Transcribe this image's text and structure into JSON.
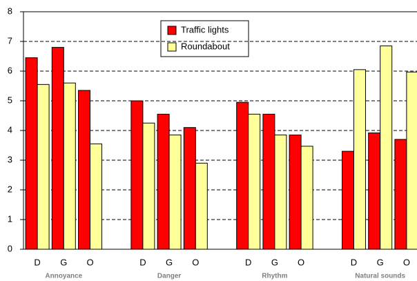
{
  "chart_data": {
    "type": "bar",
    "categories": [
      "D",
      "G",
      "O",
      "D",
      "G",
      "O",
      "D",
      "G",
      "O",
      "D",
      "G",
      "O"
    ],
    "groups": [
      "Annoyance",
      "Danger",
      "Rhythm",
      "Natural sounds"
    ],
    "series": [
      {
        "name": "Traffic lights",
        "color": "#ff0000",
        "values": [
          6.45,
          6.8,
          5.35,
          5.0,
          4.55,
          4.1,
          4.95,
          4.55,
          3.85,
          3.3,
          3.92,
          3.7
        ]
      },
      {
        "name": "Roundabout",
        "color": "#ffff99",
        "values": [
          5.55,
          5.6,
          3.55,
          4.25,
          3.85,
          2.9,
          4.55,
          3.85,
          3.47,
          6.05,
          6.85,
          5.97
        ]
      }
    ],
    "ylim": [
      0,
      8
    ],
    "yticks": [
      0,
      1,
      2,
      3,
      4,
      5,
      6,
      7,
      8
    ],
    "grid": true
  }
}
